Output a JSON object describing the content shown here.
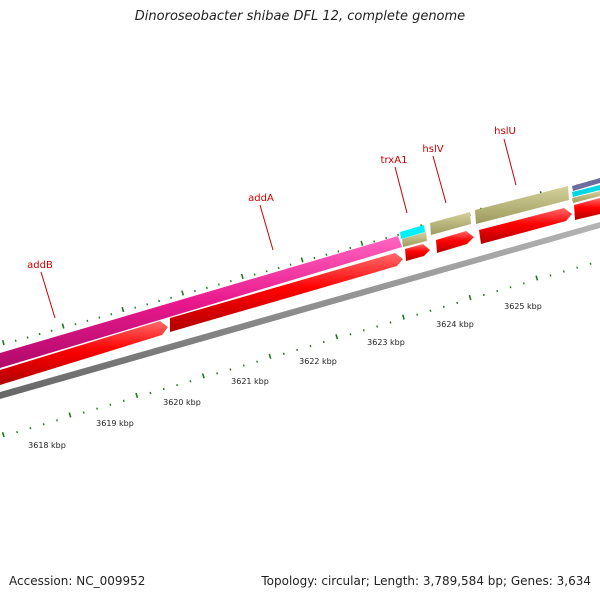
{
  "title": "Dinoroseobacter shibae DFL 12, complete genome",
  "footer": {
    "accession": "Accession: NC_009952",
    "summary": "Topology: circular; Length: 3,789,584 bp; Genes: 3,634"
  },
  "gene_labels": [
    {
      "name": "addB"
    },
    {
      "name": "addA"
    },
    {
      "name": "trxA1"
    },
    {
      "name": "hslV"
    },
    {
      "name": "hslU"
    }
  ],
  "scale_labels": [
    "3618 kbp",
    "3619 kbp",
    "3620 kbp",
    "3621 kbp",
    "3622 kbp",
    "3623 kbp",
    "3624 kbp",
    "3625 kbp"
  ],
  "colors": {
    "label_red": "#cc0000",
    "cds": "#ff0000",
    "addA_band": "#e8188c",
    "addA_band_light": "#ff55b8",
    "olive": "#b9b77a",
    "cyan": "#00f0ff",
    "backbone": "#8a8a8a",
    "tick": "#1f7a1f",
    "purple": "#6e6c9c"
  }
}
